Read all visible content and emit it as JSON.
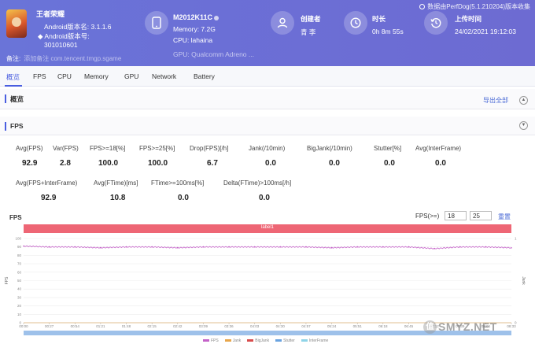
{
  "app": {
    "name": "王者荣耀",
    "android_name": "Android版本名: 3.1.1.6",
    "android_code_label": "◆ Android版本号:",
    "android_code": "301010601",
    "note_label": "备注:",
    "note_value": "添加备注  com.tencent.tmgp.sgame"
  },
  "device": {
    "model": "M2012K11C",
    "memory": "Memory: 7.2G",
    "cpu": "CPU: lahaina",
    "gpu": "GPU: Qualcomm Adreno ..."
  },
  "creator": {
    "label": "创建者",
    "value": "青 李"
  },
  "duration": {
    "label": "时长",
    "value": "0h 8m 55s"
  },
  "upload": {
    "label": "上传时间",
    "value": "24/02/2021 19:12:03"
  },
  "data_source": "数据由PerfDog(5.1.210204)版本收集",
  "tabs": [
    "概览",
    "FPS",
    "CPU",
    "Memory",
    "GPU",
    "Network",
    "Battery"
  ],
  "sections": {
    "overview": {
      "title": "概览",
      "export": "导出全部"
    },
    "fps": {
      "title": "FPS"
    }
  },
  "stats_row1": [
    {
      "label": "Avg(FPS)",
      "value": "92.9"
    },
    {
      "label": "Var(FPS)",
      "value": "2.8"
    },
    {
      "label": "FPS>=18[%]",
      "value": "100.0"
    },
    {
      "label": "FPS>=25[%]",
      "value": "100.0"
    },
    {
      "label": "Drop(FPS)[/h]",
      "value": "6.7"
    },
    {
      "label": "Jank(/10min)",
      "value": "0.0"
    },
    {
      "label": "BigJank(/10min)",
      "value": "0.0"
    },
    {
      "label": "Stutter[%]",
      "value": "0.0"
    },
    {
      "label": "Avg(InterFrame)",
      "value": "0.0"
    }
  ],
  "stats_row2": [
    {
      "label": "Avg(FPS+InterFrame)",
      "value": "92.9"
    },
    {
      "label": "Avg(FTime)[ms]",
      "value": "10.8"
    },
    {
      "label": "FTime>=100ms[%]",
      "value": "0.0"
    },
    {
      "label": "Delta(FTime)>100ms[/h]",
      "value": "0.0"
    }
  ],
  "chart": {
    "title": "FPS",
    "filter_label": "FPS(>=)",
    "filter_values": [
      "18",
      "25"
    ],
    "reset": "重置",
    "label_bar": "label1",
    "y_axis_label": "FPS",
    "right_axis_label": "Jank",
    "y_ticks": [
      "100",
      "90",
      "80",
      "70",
      "60",
      "50",
      "40",
      "30",
      "20",
      "10",
      "0"
    ],
    "right_ticks": [
      "1",
      "0"
    ],
    "x_ticks": [
      "00:00",
      "00:27",
      "00:54",
      "01:21",
      "01:48",
      "02:15",
      "02:42",
      "03:09",
      "03:36",
      "04:03",
      "04:30",
      "04:57",
      "05:24",
      "05:51",
      "06:18",
      "06:45",
      "07:12",
      "07:39",
      "08:06",
      "08:33"
    ],
    "legend": [
      {
        "name": "FPS",
        "color": "#c462c8"
      },
      {
        "name": "Jank",
        "color": "#e8a64a"
      },
      {
        "name": "BigJank",
        "color": "#d84c4c"
      },
      {
        "name": "Stutter",
        "color": "#6aa3e0"
      },
      {
        "name": "InterFrame",
        "color": "#8fd4e8"
      }
    ],
    "colors": {
      "fps_line": "#c462c8",
      "label_bar": "#ee6675"
    }
  },
  "chart_data": {
    "type": "line",
    "title": "FPS",
    "xlabel": "",
    "ylabel": "FPS",
    "ylim": [
      0,
      100
    ],
    "x": [
      "00:00",
      "00:27",
      "00:54",
      "01:21",
      "01:48",
      "02:15",
      "02:42",
      "03:09",
      "03:36",
      "04:03",
      "04:30",
      "04:57",
      "05:24",
      "05:51",
      "06:18",
      "06:45",
      "07:12",
      "07:39",
      "08:06",
      "08:33"
    ],
    "series": [
      {
        "name": "FPS",
        "values": [
          91,
          90,
          90,
          89,
          90,
          90,
          89,
          90,
          90,
          90,
          90,
          90,
          89,
          90,
          90,
          90,
          88,
          90,
          90,
          89
        ]
      },
      {
        "name": "Jank",
        "values": [
          0,
          0,
          0,
          0,
          0,
          0,
          0,
          0,
          0,
          0,
          0,
          0,
          0,
          0,
          0,
          0,
          0,
          0,
          0,
          0
        ]
      }
    ]
  },
  "watermark": "SMYZ.NET",
  "watermark_badge": "值"
}
